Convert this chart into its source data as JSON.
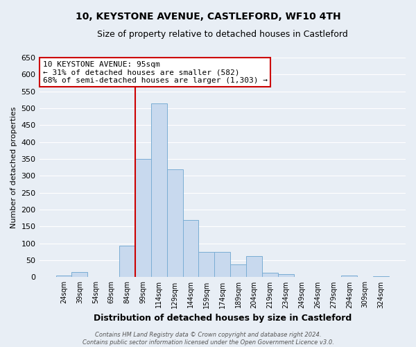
{
  "title": "10, KEYSTONE AVENUE, CASTLEFORD, WF10 4TH",
  "subtitle": "Size of property relative to detached houses in Castleford",
  "xlabel": "Distribution of detached houses by size in Castleford",
  "ylabel": "Number of detached properties",
  "bar_color": "#c8d9ee",
  "bar_edge_color": "#7aadd4",
  "background_color": "#e8eef5",
  "grid_color": "#ffffff",
  "bin_labels": [
    "24sqm",
    "39sqm",
    "54sqm",
    "69sqm",
    "84sqm",
    "99sqm",
    "114sqm",
    "129sqm",
    "144sqm",
    "159sqm",
    "174sqm",
    "189sqm",
    "204sqm",
    "219sqm",
    "234sqm",
    "249sqm",
    "264sqm",
    "279sqm",
    "294sqm",
    "309sqm",
    "324sqm"
  ],
  "bar_heights": [
    5,
    15,
    0,
    0,
    93,
    350,
    515,
    320,
    170,
    75,
    75,
    37,
    63,
    13,
    10,
    0,
    0,
    0,
    5,
    0,
    3
  ],
  "ylim": [
    0,
    650
  ],
  "yticks": [
    0,
    50,
    100,
    150,
    200,
    250,
    300,
    350,
    400,
    450,
    500,
    550,
    600,
    650
  ],
  "red_line_bin_index": 5,
  "annotation_title": "10 KEYSTONE AVENUE: 95sqm",
  "annotation_line1": "← 31% of detached houses are smaller (582)",
  "annotation_line2": "68% of semi-detached houses are larger (1,303) →",
  "annotation_box_color": "#ffffff",
  "annotation_border_color": "#cc0000",
  "footer_line1": "Contains HM Land Registry data © Crown copyright and database right 2024.",
  "footer_line2": "Contains public sector information licensed under the Open Government Licence v3.0."
}
